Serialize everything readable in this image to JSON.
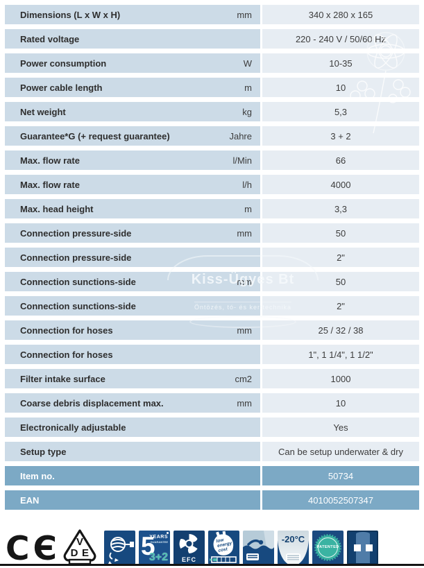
{
  "table": {
    "rows": [
      {
        "label": "Dimensions (L x W x H)",
        "unit": "mm",
        "value": "340 x 280 x 165",
        "highlight": false
      },
      {
        "label": "Rated voltage",
        "unit": "",
        "value": "220 - 240 V / 50/60 Hz",
        "highlight": false
      },
      {
        "label": "Power consumption",
        "unit": "W",
        "value": "10-35",
        "highlight": false
      },
      {
        "label": "Power cable length",
        "unit": "m",
        "value": "10",
        "highlight": false
      },
      {
        "label": "Net weight",
        "unit": "kg",
        "value": "5,3",
        "highlight": false
      },
      {
        "label": "Guarantee*G (+ request guarantee)",
        "unit": "Jahre",
        "value": "3 + 2",
        "highlight": false
      },
      {
        "label": "Max. flow rate",
        "unit": "l/Min",
        "value": "66",
        "highlight": false
      },
      {
        "label": "Max. flow rate",
        "unit": "l/h",
        "value": "4000",
        "highlight": false
      },
      {
        "label": "Max. head height",
        "unit": "m",
        "value": "3,3",
        "highlight": false
      },
      {
        "label": "Connection pressure-side",
        "unit": "mm",
        "value": "50",
        "highlight": false
      },
      {
        "label": "Connection pressure-side",
        "unit": "",
        "value": "2\"",
        "highlight": false
      },
      {
        "label": "Connection sunctions-side",
        "unit": "mm",
        "value": "50",
        "highlight": false
      },
      {
        "label": "Connection sunctions-side",
        "unit": "",
        "value": "2\"",
        "highlight": false
      },
      {
        "label": "Connection for hoses",
        "unit": "mm",
        "value": "25 / 32 / 38",
        "highlight": false
      },
      {
        "label": "Connection for hoses",
        "unit": "",
        "value": "1\", 1 1/4\", 1 1/2\"",
        "highlight": false
      },
      {
        "label": "Filter intake surface",
        "unit": "cm2",
        "value": "1000",
        "highlight": false
      },
      {
        "label": "Coarse debris displacement max.",
        "unit": "mm",
        "value": "10",
        "highlight": false
      },
      {
        "label": "Electronically adjustable",
        "unit": "",
        "value": "Yes",
        "highlight": false
      },
      {
        "label": "Setup type",
        "unit": "",
        "value": "Can be setup underwater & dry",
        "highlight": false
      },
      {
        "label": "Item no.",
        "unit": "",
        "value": "50734",
        "highlight": true
      },
      {
        "label": "EAN",
        "unit": "",
        "value": "4010052507347",
        "highlight": true
      }
    ]
  },
  "watermark": {
    "line1": "Kiss-Ügyes Bt",
    "line2": "Öntözés, tó- és kerttechnika"
  },
  "badges": {
    "ce_char1": "C",
    "ce_char2": "Є",
    "vde": {
      "v": "V",
      "d": "D",
      "e": "E"
    },
    "five_years": {
      "big": "5",
      "line1": "YEARS",
      "line2": "GUARANTEE",
      "bottom": "3+2"
    },
    "efc_label": "EFC",
    "low_energy": {
      "l1": "low",
      "l2": "energy",
      "l3": "cost"
    },
    "frost_label": "-20°C",
    "patented_label": "PATENTED"
  },
  "colors": {
    "row_label_bg": "#ccdbe7",
    "row_value_bg": "#e7edf3",
    "highlight_row_bg": "#7ca9c5",
    "badge_navy": "#17497f",
    "accent_teal": "#4fc0b2",
    "text": "#2e2e2e"
  }
}
